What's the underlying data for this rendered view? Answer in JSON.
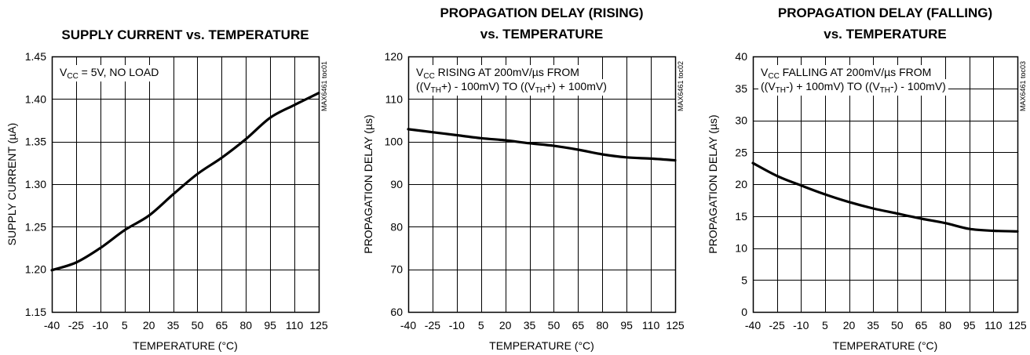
{
  "chart_data": [
    {
      "type": "line",
      "title_lines": [
        "SUPPLY CURRENT vs. TEMPERATURE"
      ],
      "xlabel": "TEMPERATURE (°C)",
      "ylabel": "SUPPLY CURRENT (µA)",
      "xlim": [
        -40,
        125
      ],
      "ylim": [
        1.15,
        1.45
      ],
      "xticks": [
        -40,
        -25,
        -10,
        5,
        20,
        35,
        50,
        65,
        80,
        95,
        110,
        125
      ],
      "yticks": [
        "1.15",
        "1.20",
        "1.25",
        "1.30",
        "1.35",
        "1.40",
        "1.45"
      ],
      "grid": true,
      "annotation": [
        {
          "segments": [
            [
              "V",
              ""
            ],
            [
              "CC",
              "sub"
            ],
            [
              " = 5V, NO LOAD",
              ""
            ]
          ]
        }
      ],
      "tag": "MAX6461 toc01",
      "series": [
        {
          "x": [
            -40,
            -25,
            -10,
            5,
            20,
            35,
            50,
            65,
            80,
            95,
            110,
            125
          ],
          "y": [
            1.199,
            1.208,
            1.225,
            1.246,
            1.263,
            1.288,
            1.312,
            1.331,
            1.353,
            1.378,
            1.393,
            1.407
          ]
        }
      ]
    },
    {
      "type": "line",
      "title_lines": [
        "PROPAGATION DELAY (RISING)",
        "vs. TEMPERATURE"
      ],
      "xlabel": "TEMPERATURE (°C)",
      "ylabel": "PROPAGATION DELAY (µs)",
      "xlim": [
        -40,
        125
      ],
      "ylim": [
        60,
        120
      ],
      "xticks": [
        -40,
        -25,
        -10,
        5,
        20,
        35,
        50,
        65,
        80,
        95,
        110,
        125
      ],
      "yticks": [
        "60",
        "70",
        "80",
        "90",
        "100",
        "110",
        "120"
      ],
      "grid": true,
      "annotation": [
        {
          "segments": [
            [
              "V",
              ""
            ],
            [
              "CC",
              "sub"
            ],
            [
              " RISING AT 200mV/µs FROM",
              ""
            ]
          ]
        },
        {
          "segments": [
            [
              "((V",
              ""
            ],
            [
              "TH",
              "sub"
            ],
            [
              "+) - 100mV) TO ((V",
              ""
            ],
            [
              "TH",
              "sub"
            ],
            [
              "+) + 100mV)",
              ""
            ]
          ]
        }
      ],
      "tag": "MAX6461 toc02",
      "series": [
        {
          "x": [
            -40,
            -25,
            -10,
            5,
            20,
            35,
            50,
            65,
            80,
            95,
            110,
            125
          ],
          "y": [
            102.9,
            102.2,
            101.5,
            100.8,
            100.3,
            99.6,
            99.0,
            98.1,
            97.0,
            96.3,
            96.0,
            95.6
          ]
        }
      ]
    },
    {
      "type": "line",
      "title_lines": [
        "PROPAGATION DELAY (FALLING)",
        "vs. TEMPERATURE"
      ],
      "xlabel": "TEMPERATURE (°C)",
      "ylabel": "PROPAGATION DELAY (µs)",
      "xlim": [
        -40,
        125
      ],
      "ylim": [
        0,
        40
      ],
      "xticks": [
        -40,
        -25,
        -10,
        5,
        20,
        35,
        50,
        65,
        80,
        95,
        110,
        125
      ],
      "yticks": [
        "0",
        "5",
        "10",
        "15",
        "20",
        "25",
        "30",
        "35",
        "40"
      ],
      "grid": true,
      "annotation": [
        {
          "segments": [
            [
              "V",
              ""
            ],
            [
              "CC",
              "sub"
            ],
            [
              " FALLING AT 200mV/µs FROM",
              ""
            ]
          ]
        },
        {
          "segments": [
            [
              "((V",
              ""
            ],
            [
              "TH",
              "sub"
            ],
            [
              "-) + 100mV) TO ((V",
              ""
            ],
            [
              "TH",
              "sub"
            ],
            [
              "-) - 100mV)",
              ""
            ]
          ]
        }
      ],
      "tag": "MAX6461 toc03",
      "series": [
        {
          "x": [
            -40,
            -25,
            -10,
            5,
            20,
            35,
            50,
            65,
            80,
            95,
            110,
            125
          ],
          "y": [
            23.3,
            21.3,
            19.8,
            18.4,
            17.2,
            16.2,
            15.4,
            14.6,
            13.9,
            13.0,
            12.7,
            12.6
          ]
        }
      ]
    }
  ]
}
